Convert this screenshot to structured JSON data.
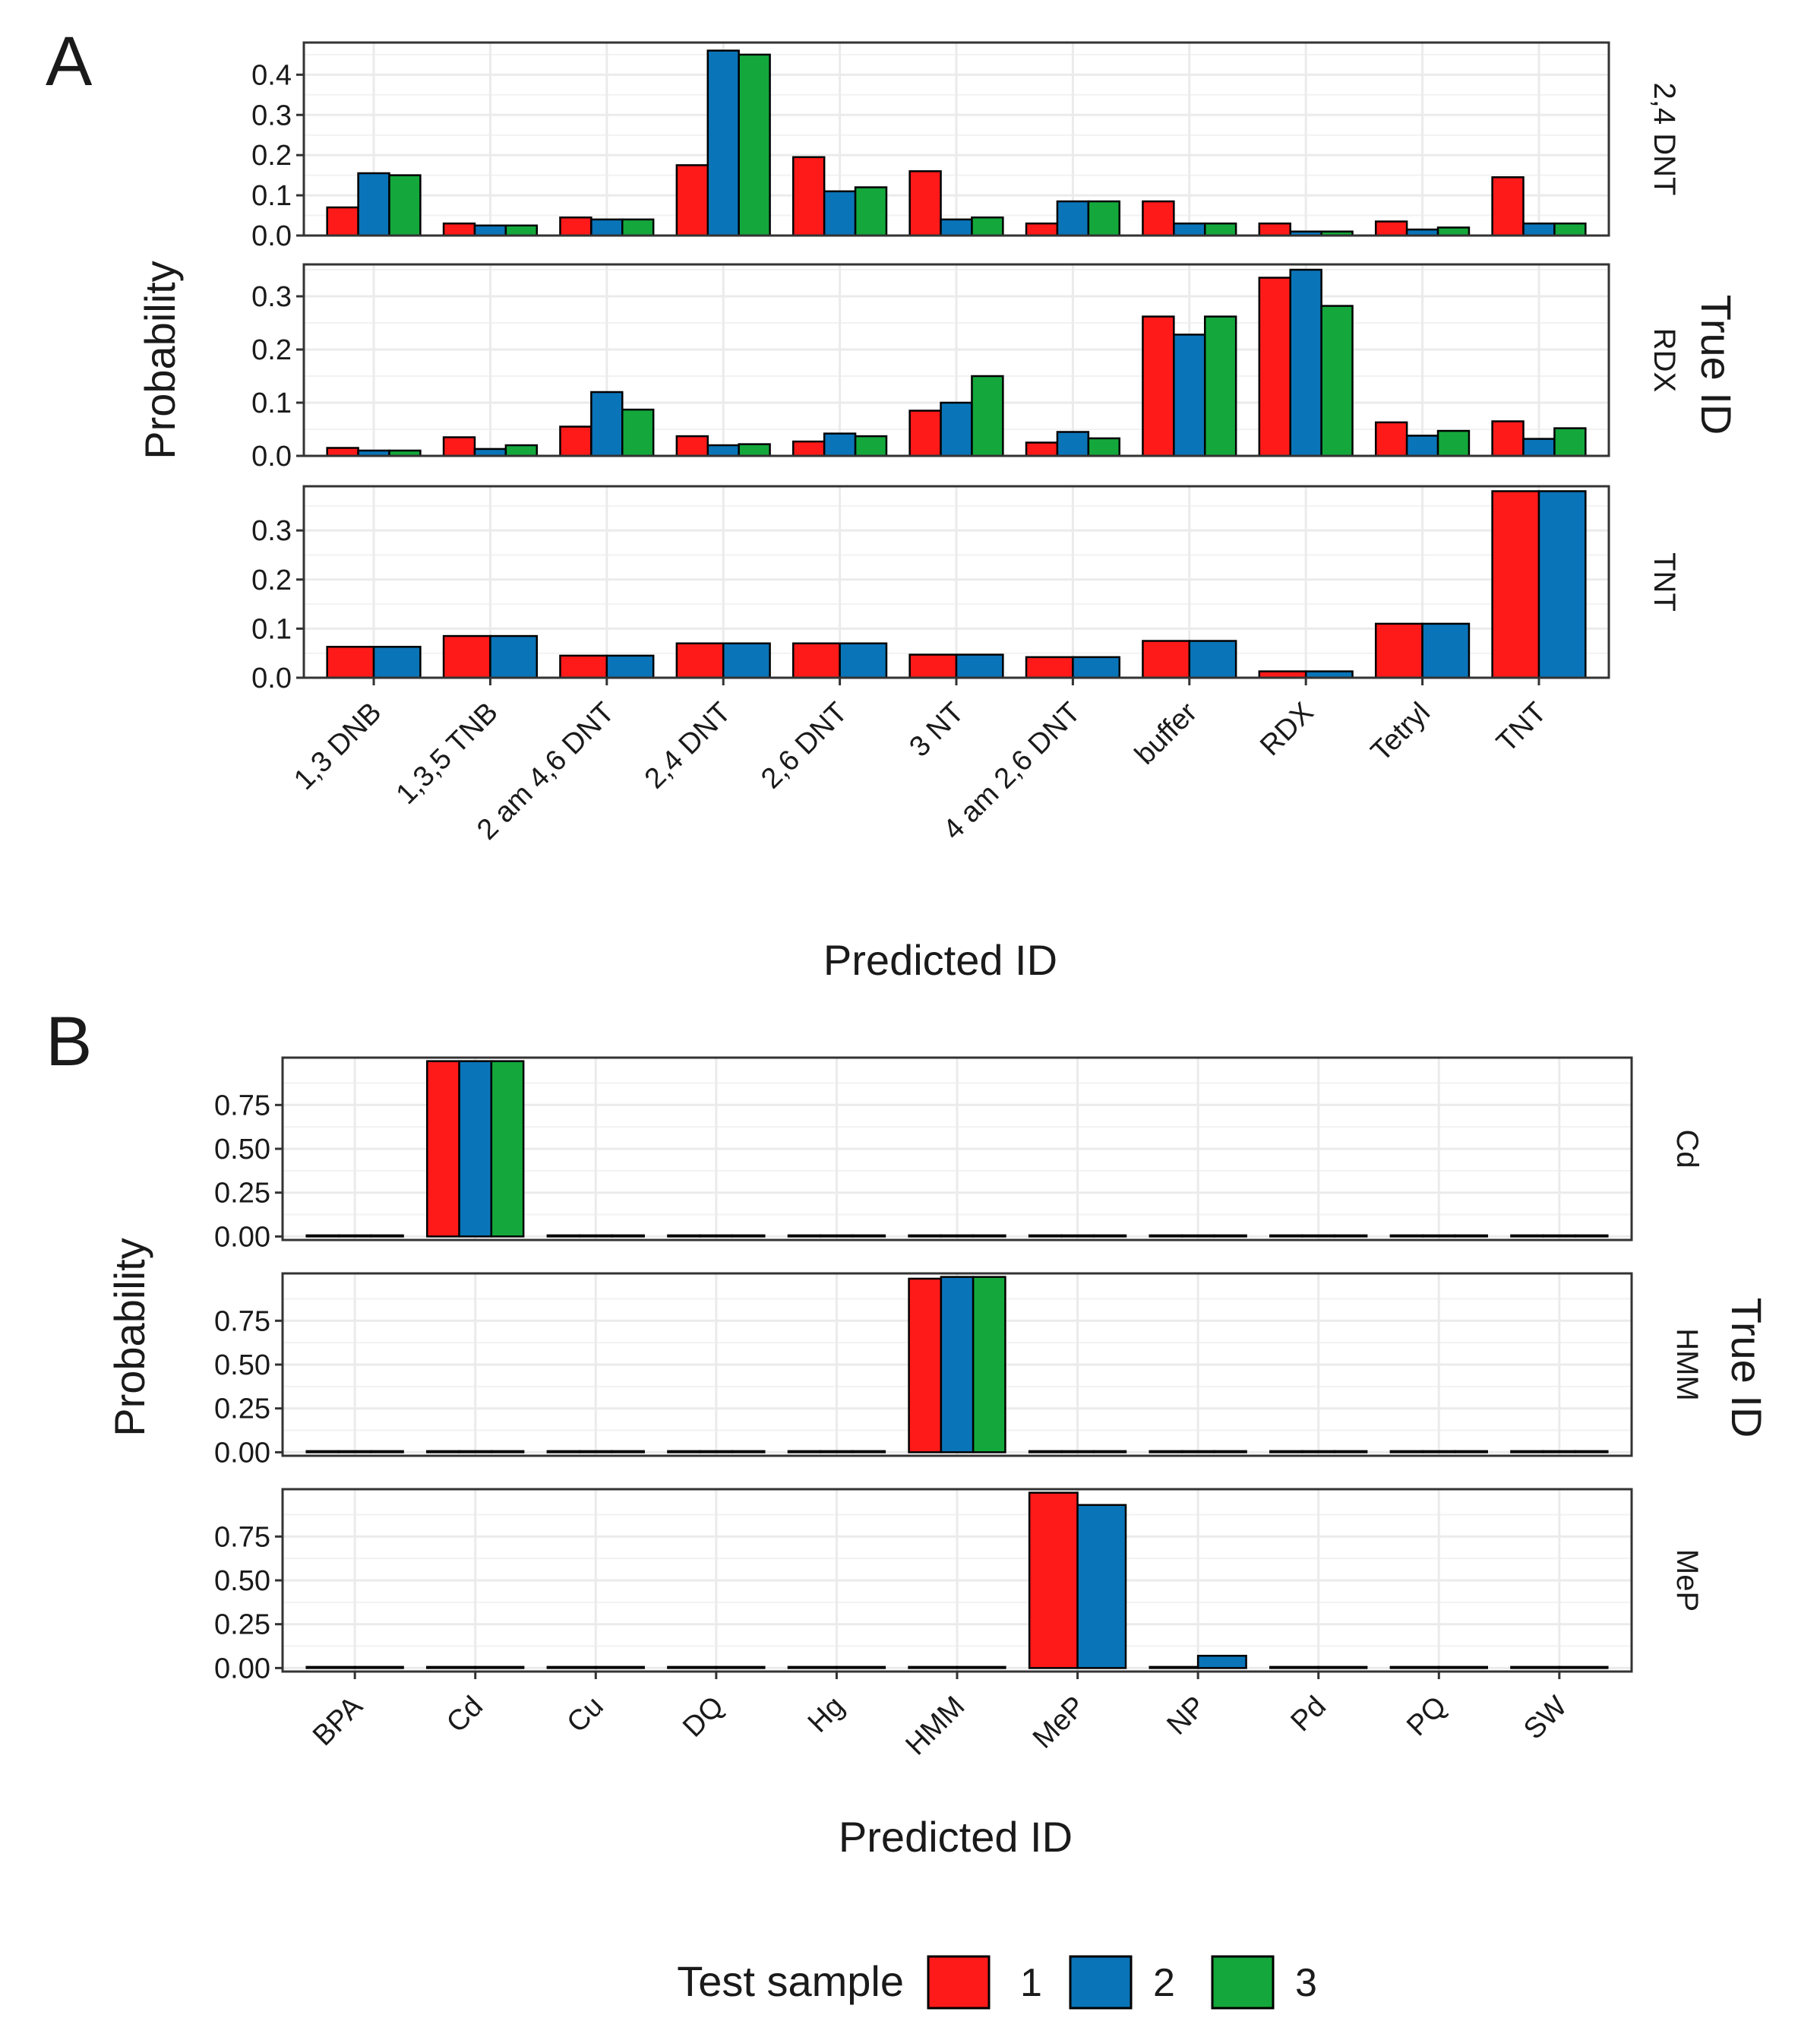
{
  "panel_letters": [
    "A",
    "B"
  ],
  "legend": {
    "title": "Test sample",
    "entries": [
      {
        "label": "1",
        "color": "#ff1a1a"
      },
      {
        "label": "2",
        "color": "#0a74b8"
      },
      {
        "label": "3",
        "color": "#14a83c"
      }
    ]
  },
  "chart_data": [
    {
      "type": "bar",
      "panel": "A",
      "xlabel": "Predicted ID",
      "ylabel": "Probability",
      "facet_label": "True ID",
      "categories": [
        "1,3 DNB",
        "1,3,5 TNB",
        "2 am 4,6 DNT",
        "2,4 DNT",
        "2,6 DNT",
        "3 NT",
        "4 am 2,6 DNT",
        "buffer",
        "RDX",
        "Tetryl",
        "TNT"
      ],
      "facets": [
        {
          "label": "2,4 DNT",
          "ylim": [
            0,
            0.48
          ],
          "yticks": [
            0.0,
            0.1,
            0.2,
            0.3,
            0.4
          ],
          "ytick_labels": [
            "0.0",
            "0.1",
            "0.2",
            "0.3",
            "0.4"
          ],
          "series": [
            {
              "name": "1",
              "values": [
                0.07,
                0.03,
                0.045,
                0.175,
                0.195,
                0.16,
                0.03,
                0.085,
                0.03,
                0.035,
                0.145
              ]
            },
            {
              "name": "2",
              "values": [
                0.155,
                0.025,
                0.04,
                0.46,
                0.11,
                0.04,
                0.085,
                0.03,
                0.01,
                0.015,
                0.03
              ]
            },
            {
              "name": "3",
              "values": [
                0.15,
                0.025,
                0.04,
                0.45,
                0.12,
                0.045,
                0.085,
                0.03,
                0.01,
                0.02,
                0.03
              ]
            }
          ]
        },
        {
          "label": "RDX",
          "ylim": [
            0,
            0.36
          ],
          "yticks": [
            0.0,
            0.1,
            0.2,
            0.3
          ],
          "ytick_labels": [
            "0.0",
            "0.1",
            "0.2",
            "0.3"
          ],
          "series": [
            {
              "name": "1",
              "values": [
                0.015,
                0.035,
                0.055,
                0.037,
                0.027,
                0.085,
                0.025,
                0.262,
                0.335,
                0.063,
                0.065
              ]
            },
            {
              "name": "2",
              "values": [
                0.01,
                0.013,
                0.12,
                0.02,
                0.042,
                0.1,
                0.045,
                0.228,
                0.35,
                0.038,
                0.032
              ]
            },
            {
              "name": "3",
              "values": [
                0.01,
                0.02,
                0.087,
                0.022,
                0.037,
                0.15,
                0.033,
                0.262,
                0.282,
                0.047,
                0.052
              ]
            }
          ]
        },
        {
          "label": "TNT",
          "ylim": [
            0,
            0.39
          ],
          "yticks": [
            0.0,
            0.1,
            0.2,
            0.3
          ],
          "ytick_labels": [
            "0.0",
            "0.1",
            "0.2",
            "0.3"
          ],
          "series": [
            {
              "name": "1",
              "values": [
                0.063,
                0.085,
                0.045,
                0.07,
                0.07,
                0.047,
                0.042,
                0.075,
                0.013,
                0.11,
                0.38
              ]
            },
            {
              "name": "2",
              "values": [
                0.063,
                0.085,
                0.045,
                0.07,
                0.07,
                0.047,
                0.042,
                0.075,
                0.013,
                0.11,
                0.38
              ]
            }
          ]
        }
      ]
    },
    {
      "type": "bar",
      "panel": "B",
      "xlabel": "Predicted ID",
      "ylabel": "Probability",
      "facet_label": "True ID",
      "categories": [
        "BPA",
        "Cd",
        "Cu",
        "DQ",
        "Hg",
        "HMM",
        "MeP",
        "NP",
        "Pd",
        "PQ",
        "SW"
      ],
      "facets": [
        {
          "label": "Cd",
          "ylim": [
            -0.02,
            1.02
          ],
          "yticks": [
            0.0,
            0.25,
            0.5,
            0.75
          ],
          "ytick_labels": [
            "0.00",
            "0.25",
            "0.50",
            "0.75"
          ],
          "series": [
            {
              "name": "1",
              "values": [
                0,
                1.0,
                0,
                0,
                0,
                0,
                0,
                0,
                0,
                0,
                0
              ]
            },
            {
              "name": "2",
              "values": [
                0,
                1.0,
                0,
                0,
                0,
                0,
                0,
                0,
                0,
                0,
                0
              ]
            },
            {
              "name": "3",
              "values": [
                0,
                1.0,
                0,
                0,
                0,
                0,
                0,
                0,
                0,
                0,
                0
              ]
            }
          ]
        },
        {
          "label": "HMM",
          "ylim": [
            -0.02,
            1.02
          ],
          "yticks": [
            0.0,
            0.25,
            0.5,
            0.75
          ],
          "ytick_labels": [
            "0.00",
            "0.25",
            "0.50",
            "0.75"
          ],
          "series": [
            {
              "name": "1",
              "values": [
                0,
                0,
                0,
                0,
                0.005,
                0.99,
                0,
                0,
                0,
                0,
                0
              ]
            },
            {
              "name": "2",
              "values": [
                0,
                0,
                0,
                0,
                0.003,
                1.0,
                0,
                0,
                0,
                0,
                0
              ]
            },
            {
              "name": "3",
              "values": [
                0,
                0,
                0,
                0,
                0.002,
                1.0,
                0,
                0,
                0,
                0,
                0
              ]
            }
          ]
        },
        {
          "label": "MeP",
          "ylim": [
            -0.02,
            1.02
          ],
          "yticks": [
            0.0,
            0.25,
            0.5,
            0.75
          ],
          "ytick_labels": [
            "0.00",
            "0.25",
            "0.50",
            "0.75"
          ],
          "series": [
            {
              "name": "1",
              "values": [
                0,
                0,
                0,
                0,
                0,
                0,
                1.0,
                0,
                0,
                0,
                0
              ]
            },
            {
              "name": "2",
              "values": [
                0,
                0,
                0,
                0,
                0,
                0,
                0.93,
                0.07,
                0,
                0,
                0
              ]
            }
          ]
        }
      ]
    }
  ]
}
